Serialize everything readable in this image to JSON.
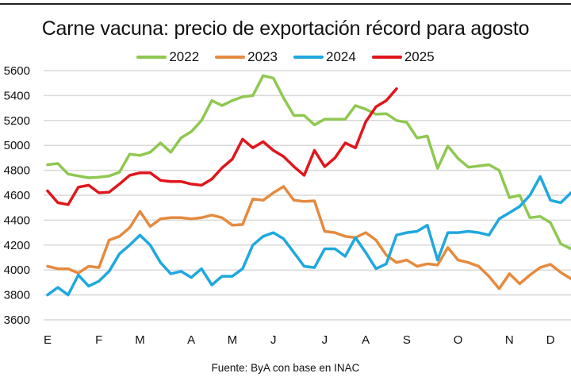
{
  "chart_data": {
    "type": "line",
    "title": "Carne vacuna: precio de exportación récord para agosto",
    "source": "Fuente: ByA con base en INAC",
    "xlabel": "",
    "ylabel": "",
    "ylim": [
      3600,
      5600
    ],
    "yticks": [
      3600,
      3800,
      4000,
      4200,
      4400,
      4600,
      4800,
      5000,
      5200,
      5400,
      5600
    ],
    "grid": true,
    "legend_position": "top-center",
    "month_labels": [
      "E",
      "F",
      "M",
      "A",
      "M",
      "J",
      "J",
      "A",
      "S",
      "O",
      "N",
      "D"
    ],
    "month_label_week": [
      1,
      6,
      10,
      15,
      19,
      23,
      28,
      32,
      36,
      41,
      46,
      50
    ],
    "x_unit": "week",
    "series": [
      {
        "name": "2022",
        "color": "#8fc850",
        "values": [
          4845,
          4855,
          4770,
          4755,
          4740,
          4745,
          4755,
          4785,
          4930,
          4920,
          4945,
          5020,
          4945,
          5060,
          5110,
          5200,
          5360,
          5320,
          5360,
          5390,
          5400,
          5560,
          5540,
          5380,
          5240,
          5240,
          5165,
          5210,
          5210,
          5210,
          5320,
          5290,
          5250,
          5255,
          5200,
          5185,
          5060,
          5075,
          4815,
          4995,
          4895,
          4825,
          4835,
          4845,
          4800,
          4580,
          4600,
          4420,
          4430,
          4380,
          4210,
          4170
        ]
      },
      {
        "name": "2023",
        "color": "#e58a3f",
        "values": [
          4030,
          4010,
          4010,
          3975,
          4030,
          4020,
          4240,
          4270,
          4340,
          4470,
          4350,
          4410,
          4420,
          4420,
          4410,
          4420,
          4440,
          4420,
          4360,
          4365,
          4570,
          4560,
          4620,
          4670,
          4560,
          4550,
          4555,
          4310,
          4300,
          4270,
          4260,
          4300,
          4240,
          4120,
          4060,
          4080,
          4030,
          4050,
          4040,
          4180,
          4080,
          4060,
          4030,
          3950,
          3850,
          3970,
          3890,
          3960,
          4020,
          4045,
          3980,
          3930
        ]
      },
      {
        "name": "2024",
        "color": "#1fa8de",
        "values": [
          3800,
          3860,
          3800,
          3960,
          3870,
          3910,
          3990,
          4130,
          4200,
          4280,
          4200,
          4060,
          3970,
          3990,
          3940,
          4010,
          3880,
          3950,
          3950,
          4010,
          4200,
          4270,
          4300,
          4250,
          4140,
          4030,
          4020,
          4170,
          4170,
          4110,
          4260,
          4140,
          4010,
          4050,
          4280,
          4300,
          4310,
          4360,
          4080,
          4300,
          4300,
          4310,
          4300,
          4280,
          4410,
          4460,
          4510,
          4600,
          4750,
          4560,
          4540,
          4620
        ]
      },
      {
        "name": "2025",
        "color": "#e0161c",
        "values": [
          4635,
          4540,
          4525,
          4665,
          4680,
          4620,
          4625,
          4690,
          4760,
          4780,
          4780,
          4720,
          4710,
          4710,
          4690,
          4680,
          4730,
          4820,
          4890,
          5050,
          4980,
          5030,
          4960,
          4910,
          4830,
          4760,
          4960,
          4830,
          4900,
          5020,
          4980,
          5190,
          5310,
          5360,
          5455
        ]
      }
    ]
  }
}
